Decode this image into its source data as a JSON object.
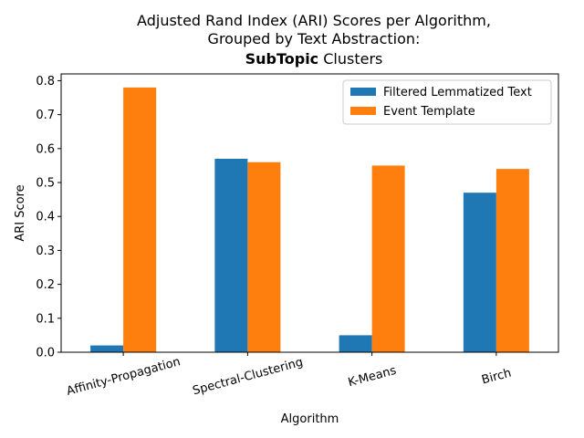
{
  "chart_data": {
    "type": "bar",
    "title_lines": [
      "Adjusted Rand Index (ARI) Scores per Algorithm,",
      "Grouped by Text Abstraction:"
    ],
    "title_bold": "SubTopic",
    "title_rest": " Clusters",
    "xlabel": "Algorithm",
    "ylabel": "ARI Score",
    "categories": [
      "Affinity-Propagation",
      "Spectral-Clustering",
      "K-Means",
      "Birch"
    ],
    "series": [
      {
        "name": "Filtered Lemmatized Text",
        "color": "#1f77b4",
        "values": [
          0.02,
          0.57,
          0.05,
          0.47
        ]
      },
      {
        "name": "Event Template",
        "color": "#ff7f0e",
        "values": [
          0.78,
          0.56,
          0.55,
          0.54
        ]
      }
    ],
    "ylim": [
      0,
      0.82
    ],
    "yticks": [
      0.0,
      0.1,
      0.2,
      0.3,
      0.4,
      0.5,
      0.6,
      0.7,
      0.8
    ],
    "ytick_labels": [
      "0.0",
      "0.1",
      "0.2",
      "0.3",
      "0.4",
      "0.5",
      "0.6",
      "0.7",
      "0.8"
    ],
    "grid": false,
    "legend_position": "top-right"
  }
}
